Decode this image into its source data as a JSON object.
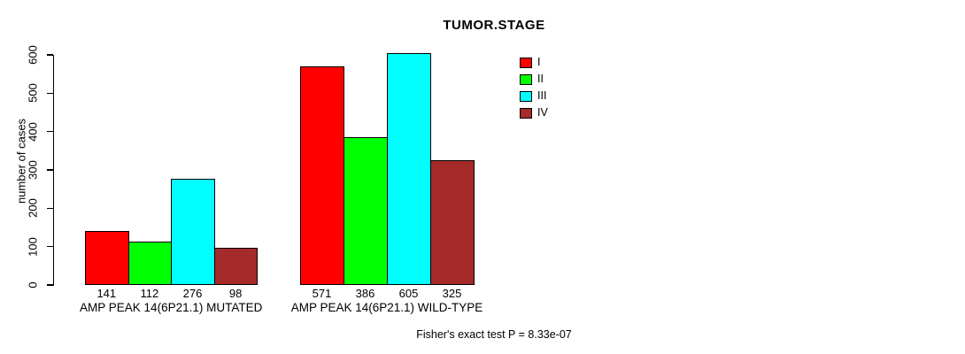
{
  "title": "TUMOR.STAGE",
  "chart_data": {
    "type": "bar",
    "title": "TUMOR.STAGE",
    "ylabel": "number of cases",
    "xlabel": "",
    "ylim": [
      0,
      600
    ],
    "yticks": [
      0,
      100,
      200,
      300,
      400,
      500,
      600
    ],
    "grid": false,
    "legend_position": "top-right",
    "categories": [
      "AMP PEAK 14(6P21.1) MUTATED",
      "AMP PEAK 14(6P21.1) WILD-TYPE"
    ],
    "series": [
      {
        "name": "I",
        "color": "#ff0000",
        "values": [
          141,
          571
        ]
      },
      {
        "name": "II",
        "color": "#00ff00",
        "values": [
          112,
          386
        ]
      },
      {
        "name": "III",
        "color": "#00ffff",
        "values": [
          276,
          605
        ]
      },
      {
        "name": "IV",
        "color": "#a52a2a",
        "values": [
          98,
          325
        ]
      }
    ],
    "bar_value_labels_shown": true,
    "annotation": "Fisher's exact test P = 8.33e-07"
  }
}
